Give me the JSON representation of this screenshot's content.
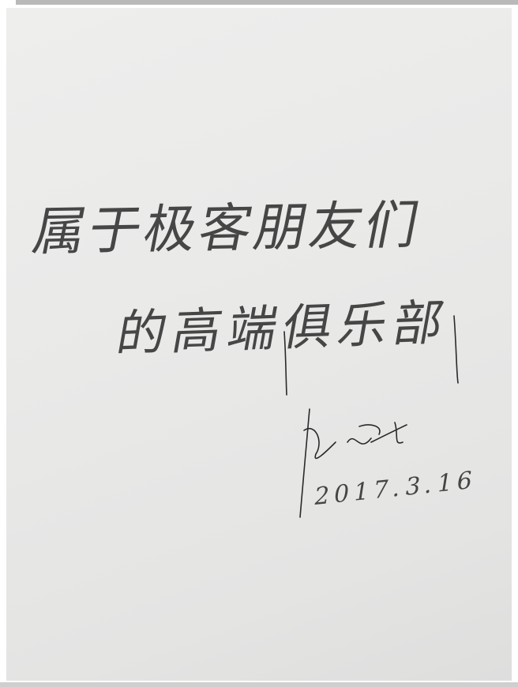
{
  "inscription": {
    "lines": [
      "属于极客朋友们",
      "的高端俱乐部"
    ],
    "date": "2017.3.16"
  }
}
